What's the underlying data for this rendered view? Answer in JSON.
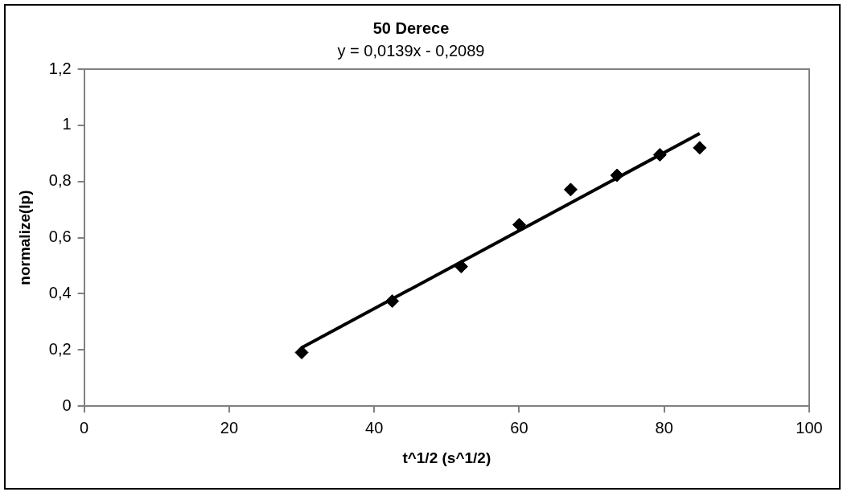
{
  "chart_data": {
    "type": "scatter",
    "title": "50 Derece",
    "annotations": [
      "y = 0,0139x - 0,2089"
    ],
    "xlabel": "t^1/2 (s^1/2)",
    "ylabel": "normalize(Ip)",
    "xlim": [
      0,
      100
    ],
    "xticks": [
      0,
      20,
      40,
      60,
      80,
      100
    ],
    "ylim": [
      0,
      1.2
    ],
    "yticks": [
      0,
      {
        "value": 0.2,
        "label": "0,2"
      },
      {
        "value": 0.4,
        "label": "0,4"
      },
      {
        "value": 0.6,
        "label": "0,6"
      },
      {
        "value": 0.8,
        "label": "0,8"
      },
      1,
      {
        "value": 1.2,
        "label": "1,2"
      }
    ],
    "grid": false,
    "legend": false,
    "marker": "diamond",
    "series": [
      {
        "type": "scatter",
        "color": "#000000",
        "x": [
          30.0,
          42.5,
          52.0,
          60.0,
          67.1,
          73.5,
          79.4,
          84.9
        ],
        "values": [
          0.191,
          0.374,
          0.497,
          0.646,
          0.771,
          0.822,
          0.895,
          0.92
        ]
      },
      {
        "type": "line",
        "color": "#000000",
        "line_style": "solid",
        "marker": "none",
        "x": [
          30.0,
          84.9
        ],
        "values": [
          0.208,
          0.971
        ]
      }
    ]
  }
}
